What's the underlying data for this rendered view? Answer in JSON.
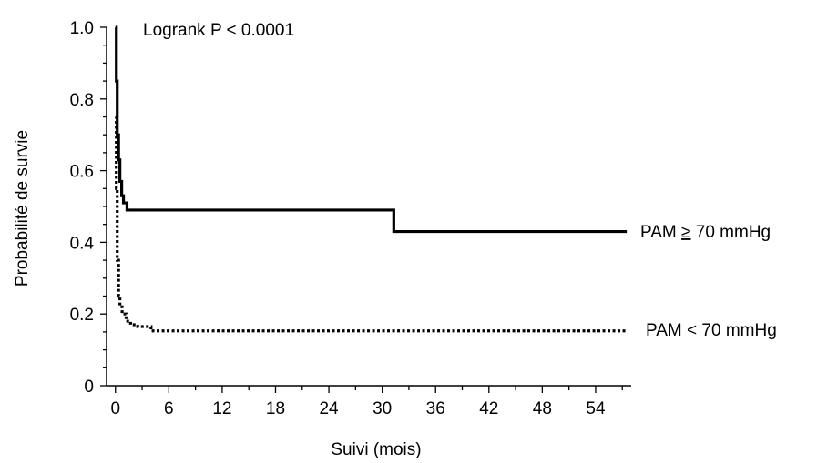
{
  "chart_data": {
    "type": "line",
    "subtype": "kaplan-meier step curve",
    "xlabel": "Suivi (mois)",
    "ylabel": "Probabilité de survie",
    "xlim": [
      -1,
      58
    ],
    "ylim": [
      0,
      1.0
    ],
    "x_ticks": [
      0,
      6,
      12,
      18,
      24,
      30,
      36,
      42,
      48,
      54
    ],
    "x_tick_labels": [
      "0",
      "6",
      "12",
      "18",
      "24",
      "30",
      "36",
      "42",
      "48",
      "54"
    ],
    "y_ticks": [
      0,
      0.2,
      0.4,
      0.6,
      0.8,
      1.0
    ],
    "y_tick_labels": [
      "0",
      "0.2",
      "0.4",
      "0.6",
      "0.8",
      "1.0"
    ],
    "annotation": "Logrank P < 0.0001",
    "grid": false,
    "legend": "inline labels at right",
    "series": [
      {
        "label": "PAM",
        "label_rel": "≥",
        "label_unit": "70 mmHg",
        "style": "solid",
        "color": "#000000",
        "x": [
          0,
          0.1,
          0.2,
          0.35,
          0.5,
          0.7,
          0.9,
          1.3,
          31.3,
          57.5
        ],
        "y": [
          1.0,
          0.85,
          0.7,
          0.63,
          0.57,
          0.53,
          0.51,
          0.49,
          0.43,
          0.43
        ]
      },
      {
        "label": "PAM < 70 mmHg",
        "style": "dotted",
        "color": "#000000",
        "x": [
          0,
          0.1,
          0.2,
          0.35,
          0.5,
          0.75,
          1.2,
          1.7,
          2.5,
          4.0,
          57.5
        ],
        "y": [
          0.75,
          0.55,
          0.35,
          0.25,
          0.22,
          0.2,
          0.18,
          0.17,
          0.165,
          0.153,
          0.153
        ]
      }
    ]
  }
}
